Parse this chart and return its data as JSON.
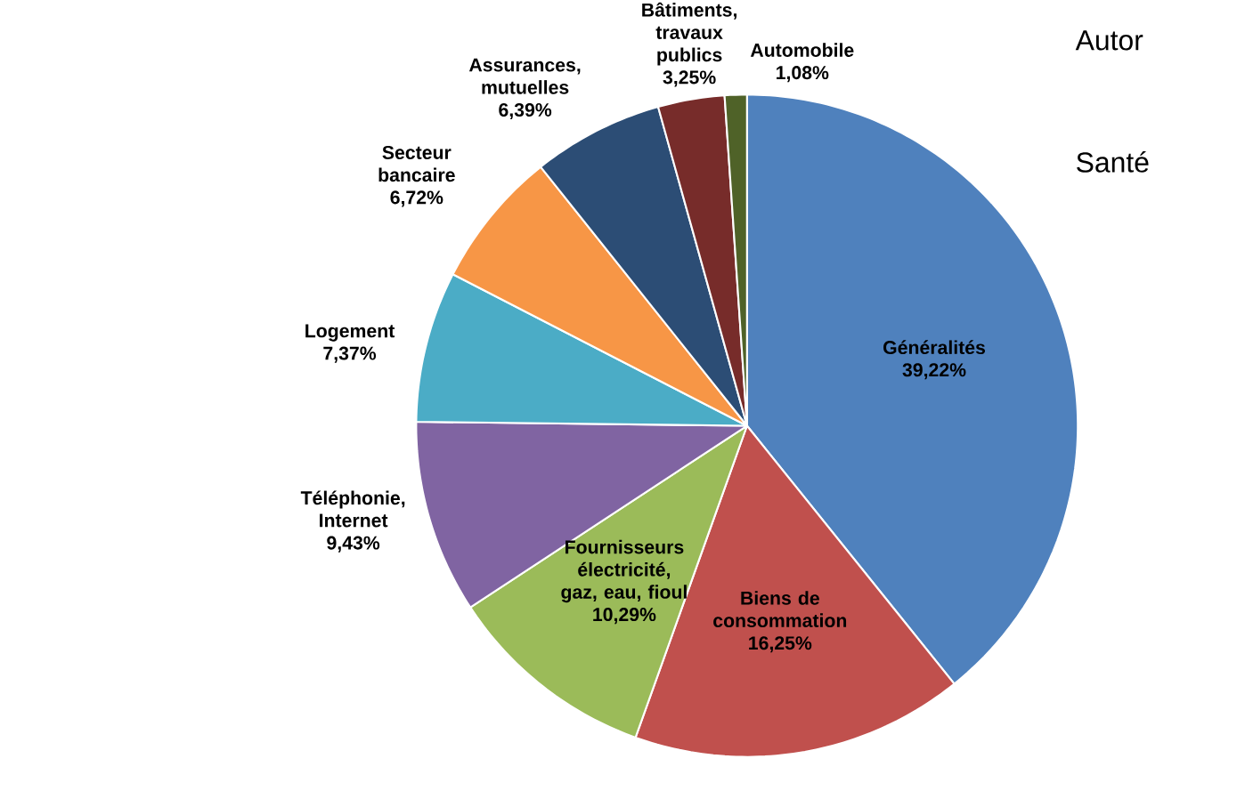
{
  "chart_data": {
    "type": "pie",
    "categories": [
      "Généralités",
      "Biens de consommation",
      "Fournisseurs électricité, gaz, eau, fioul",
      "Téléphonie, Internet",
      "Logement",
      "Secteur bancaire",
      "Assurances, mutuelles",
      "Bâtiments, travaux publics",
      "Automobile"
    ],
    "values": [
      39.22,
      16.25,
      10.29,
      9.43,
      7.37,
      6.72,
      6.39,
      3.25,
      1.08
    ],
    "value_labels": [
      "39,22%",
      "16,25%",
      "10,29%",
      "9,43%",
      "7,37%",
      "6,72%",
      "6,39%",
      "3,25%",
      "1,08%"
    ],
    "colors": [
      "#4f81bd",
      "#c0504d",
      "#9bbb59",
      "#8064a2",
      "#4bacc6",
      "#f79646",
      "#2c4d75",
      "#772c2a",
      "#4f6228"
    ],
    "annotations": [
      "Autor",
      "Santé"
    ]
  }
}
